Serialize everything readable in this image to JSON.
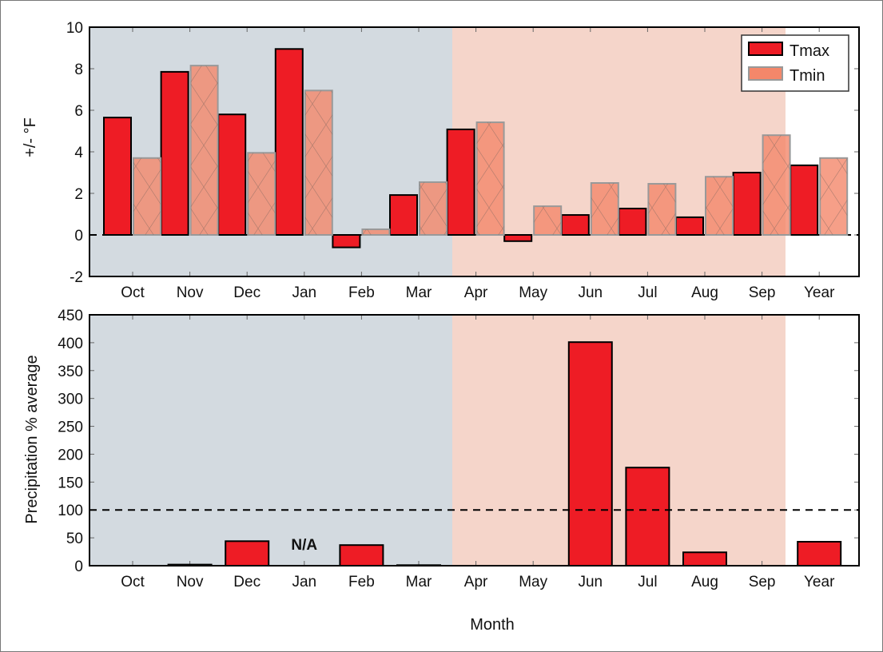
{
  "chart_data": [
    {
      "type": "bar",
      "categories": [
        "Oct",
        "Nov",
        "Dec",
        "Jan",
        "Feb",
        "Mar",
        "Apr",
        "May",
        "Jun",
        "Jul",
        "Aug",
        "Sep",
        "Year"
      ],
      "ylabel": "+/- °F",
      "ylim": [
        -2,
        10
      ],
      "yticks": [
        -2,
        0,
        2,
        4,
        6,
        8,
        10
      ],
      "reference_line": 0,
      "legend_position": "top-right",
      "shaded_regions": [
        {
          "from": "Oct",
          "to": "Mar",
          "color": "#d3dae0"
        },
        {
          "from": "Apr",
          "to": "Sep",
          "color": "#f5d5ca"
        }
      ],
      "series": [
        {
          "name": "Tmax",
          "color": "#ee1c25",
          "values": [
            5.65,
            7.85,
            5.8,
            8.95,
            -0.6,
            1.92,
            5.08,
            -0.3,
            0.96,
            1.27,
            0.85,
            3.0,
            3.35
          ]
        },
        {
          "name": "Tmin",
          "color": "#f4876a",
          "hatch": "cross",
          "values": [
            3.7,
            8.15,
            3.95,
            6.95,
            0.27,
            2.54,
            5.42,
            1.38,
            2.5,
            2.46,
            2.8,
            4.8,
            3.7
          ]
        }
      ]
    },
    {
      "type": "bar",
      "categories": [
        "Oct",
        "Nov",
        "Dec",
        "Jan",
        "Feb",
        "Mar",
        "Apr",
        "May",
        "Jun",
        "Jul",
        "Aug",
        "Sep",
        "Year"
      ],
      "xlabel": "Month",
      "ylabel": "Precipitation % average",
      "ylim": [
        0,
        450
      ],
      "yticks": [
        0,
        50,
        100,
        150,
        200,
        250,
        300,
        350,
        400,
        450
      ],
      "reference_line": 100,
      "color": "#ee1c25",
      "values": [
        0,
        2,
        44,
        null,
        37,
        1,
        0,
        0,
        401,
        176,
        24,
        0,
        43
      ],
      "annotations": [
        {
          "category": "Jan",
          "text": "N/A"
        }
      ]
    }
  ]
}
